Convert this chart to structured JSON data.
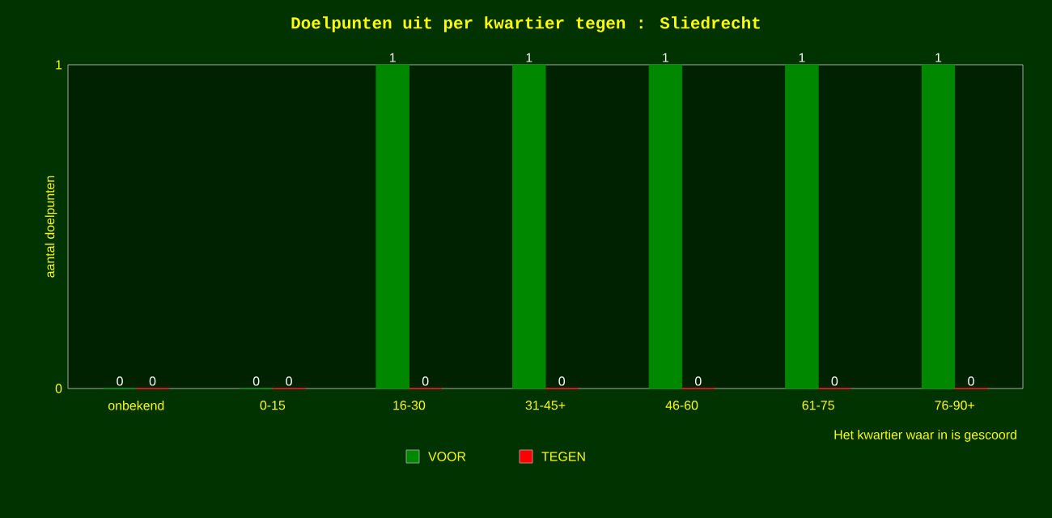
{
  "chart_data": {
    "type": "bar",
    "title": "Doelpunten uit per kwartier tegen : Sliedrecht",
    "xlabel": "Het kwartier waar in is gescoord",
    "ylabel": "aantal doelpunten",
    "categories": [
      "onbekend",
      "0-15",
      "16-30",
      "31-45+",
      "46-60",
      "61-75",
      "76-90+"
    ],
    "series": [
      {
        "name": "VOOR",
        "color": "#008800",
        "values": [
          0,
          0,
          1,
          1,
          1,
          1,
          1
        ]
      },
      {
        "name": "TEGEN",
        "color": "#ff0000",
        "values": [
          0,
          0,
          0,
          0,
          0,
          0,
          0
        ]
      }
    ],
    "ylim": [
      0,
      1
    ],
    "yticks": [
      0,
      1
    ],
    "data_labels": true,
    "legend": "bottom",
    "grid": false
  }
}
